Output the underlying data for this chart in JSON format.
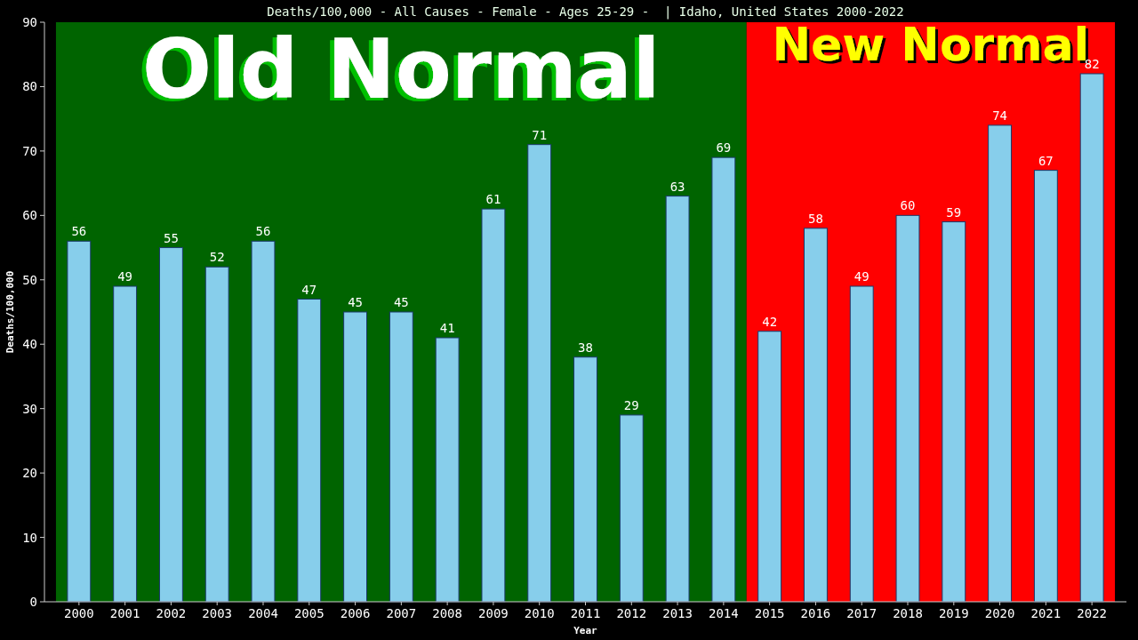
{
  "chart_data": {
    "type": "bar",
    "title": "Deaths/100,000 - All Causes - Female - Ages 25-29 -  | Idaho, United States 2000-2022",
    "xlabel": "Year",
    "ylabel": "Deaths/100,000",
    "categories": [
      "2000",
      "2001",
      "2002",
      "2003",
      "2004",
      "2005",
      "2006",
      "2007",
      "2008",
      "2009",
      "2010",
      "2011",
      "2012",
      "2013",
      "2014",
      "2015",
      "2016",
      "2017",
      "2018",
      "2019",
      "2020",
      "2021",
      "2022"
    ],
    "values": [
      56,
      49,
      55,
      52,
      56,
      47,
      45,
      45,
      41,
      61,
      71,
      38,
      29,
      63,
      69,
      42,
      58,
      49,
      60,
      59,
      74,
      67,
      82
    ],
    "color": "#87ceeb",
    "ylim": [
      0,
      90
    ],
    "yticks": [
      0,
      10,
      20,
      30,
      40,
      50,
      60,
      70,
      80,
      90
    ],
    "grid": false,
    "data_labels": true,
    "bands": [
      {
        "axis": "x",
        "from": "2000",
        "to": "2014",
        "label": "Old Normal",
        "color": "#006400"
      },
      {
        "axis": "x",
        "from": "2015",
        "to": "2022",
        "label": "New Normal",
        "color": "#ff0000"
      }
    ]
  }
}
